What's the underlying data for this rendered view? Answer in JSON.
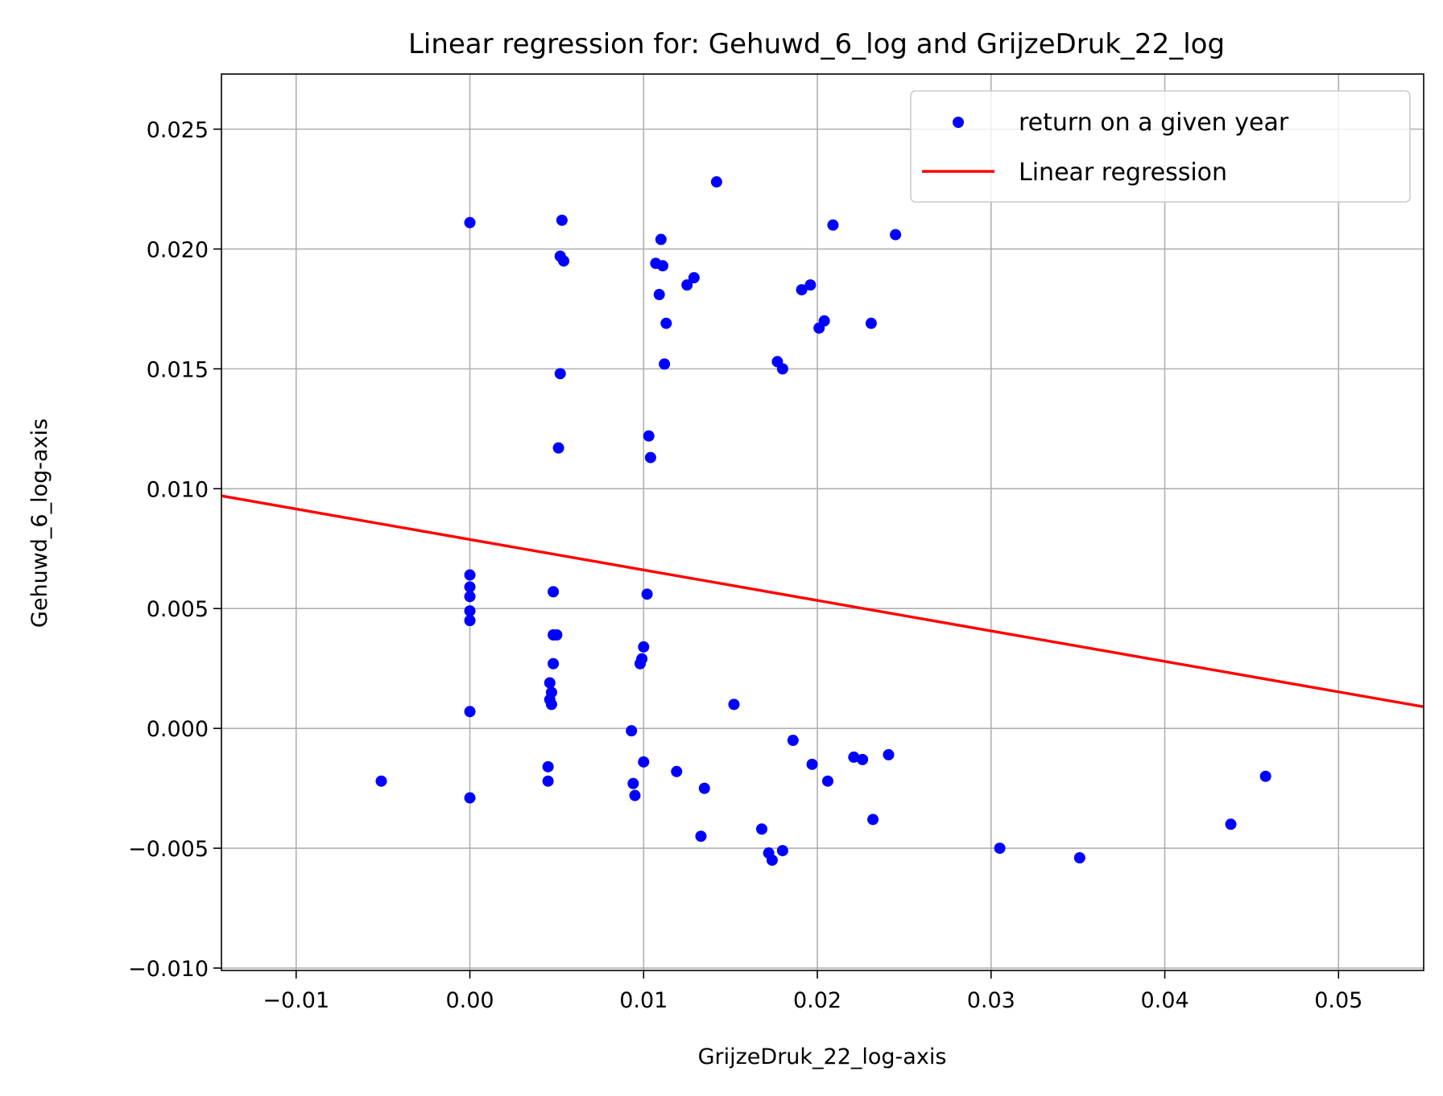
{
  "chart_data": {
    "type": "scatter",
    "title": "Linear regression for: Gehuwd_6_log and GrijzeDruk_22_log",
    "xlabel": "GrijzeDruk_22_log-axis",
    "ylabel": "Gehuwd_6_log-axis",
    "xlim": [
      -0.0143,
      0.0549
    ],
    "ylim": [
      -0.0101,
      0.0273
    ],
    "grid": true,
    "legend_position": "top-right",
    "x_ticks": [
      {
        "value": -0.01,
        "label": "−0.01"
      },
      {
        "value": 0.0,
        "label": "0.00"
      },
      {
        "value": 0.01,
        "label": "0.01"
      },
      {
        "value": 0.02,
        "label": "0.02"
      },
      {
        "value": 0.03,
        "label": "0.03"
      },
      {
        "value": 0.04,
        "label": "0.04"
      },
      {
        "value": 0.05,
        "label": "0.05"
      }
    ],
    "y_ticks": [
      {
        "value": -0.01,
        "label": "−0.010"
      },
      {
        "value": -0.005,
        "label": "−0.005"
      },
      {
        "value": 0.0,
        "label": "0.000"
      },
      {
        "value": 0.005,
        "label": "0.005"
      },
      {
        "value": 0.01,
        "label": "0.010"
      },
      {
        "value": 0.015,
        "label": "0.015"
      },
      {
        "value": 0.02,
        "label": "0.020"
      },
      {
        "value": 0.025,
        "label": "0.025"
      }
    ],
    "series": [
      {
        "name": "return on a given year",
        "type": "scatter",
        "color": "#0000ff",
        "points": [
          [
            0.0,
            0.0211
          ],
          [
            0.0053,
            0.0212
          ],
          [
            0.0052,
            0.0197
          ],
          [
            0.0054,
            0.0195
          ],
          [
            0.0052,
            0.0148
          ],
          [
            0.0051,
            0.0117
          ],
          [
            0.0,
            0.0064
          ],
          [
            0.0,
            0.0059
          ],
          [
            0.0,
            0.0055
          ],
          [
            0.0,
            0.0049
          ],
          [
            0.0,
            0.0045
          ],
          [
            0.0,
            0.0007
          ],
          [
            0.0,
            -0.0029
          ],
          [
            -0.0051,
            -0.0022
          ],
          [
            0.0048,
            0.0057
          ],
          [
            0.0048,
            0.0039
          ],
          [
            0.005,
            0.0039
          ],
          [
            0.0048,
            0.0027
          ],
          [
            0.0046,
            0.0019
          ],
          [
            0.0047,
            0.0015
          ],
          [
            0.0046,
            0.0012
          ],
          [
            0.0047,
            0.001
          ],
          [
            0.0045,
            -0.0016
          ],
          [
            0.0045,
            -0.0022
          ],
          [
            0.0142,
            0.0228
          ],
          [
            0.011,
            0.0204
          ],
          [
            0.0107,
            0.0194
          ],
          [
            0.0111,
            0.0193
          ],
          [
            0.0129,
            0.0188
          ],
          [
            0.0125,
            0.0185
          ],
          [
            0.0109,
            0.0181
          ],
          [
            0.0113,
            0.0169
          ],
          [
            0.0112,
            0.0152
          ],
          [
            0.0103,
            0.0122
          ],
          [
            0.0104,
            0.0113
          ],
          [
            0.0102,
            0.0056
          ],
          [
            0.01,
            0.0034
          ],
          [
            0.0099,
            0.0029
          ],
          [
            0.0098,
            0.0027
          ],
          [
            0.0093,
            -0.0001
          ],
          [
            0.01,
            -0.0014
          ],
          [
            0.0094,
            -0.0023
          ],
          [
            0.0095,
            -0.0028
          ],
          [
            0.0119,
            -0.0018
          ],
          [
            0.0135,
            -0.0025
          ],
          [
            0.0133,
            -0.0045
          ],
          [
            0.0152,
            0.001
          ],
          [
            0.0209,
            0.021
          ],
          [
            0.0245,
            0.0206
          ],
          [
            0.0191,
            0.0183
          ],
          [
            0.0196,
            0.0185
          ],
          [
            0.0204,
            0.017
          ],
          [
            0.0201,
            0.0167
          ],
          [
            0.0231,
            0.0169
          ],
          [
            0.0177,
            0.0153
          ],
          [
            0.018,
            0.015
          ],
          [
            0.0186,
            -0.0005
          ],
          [
            0.0197,
            -0.0015
          ],
          [
            0.0206,
            -0.0022
          ],
          [
            0.0221,
            -0.0012
          ],
          [
            0.0226,
            -0.0013
          ],
          [
            0.0241,
            -0.0011
          ],
          [
            0.0232,
            -0.0038
          ],
          [
            0.0168,
            -0.0042
          ],
          [
            0.0172,
            -0.0052
          ],
          [
            0.0174,
            -0.0055
          ],
          [
            0.018,
            -0.0051
          ],
          [
            0.0305,
            -0.005
          ],
          [
            0.0351,
            -0.0054
          ],
          [
            0.0438,
            -0.004
          ],
          [
            0.0458,
            -0.002
          ]
        ]
      },
      {
        "name": "Linear regression",
        "type": "line",
        "color": "#ff0000",
        "x": [
          -0.0143,
          0.0549
        ],
        "y": [
          0.0097,
          0.0009
        ]
      }
    ]
  }
}
